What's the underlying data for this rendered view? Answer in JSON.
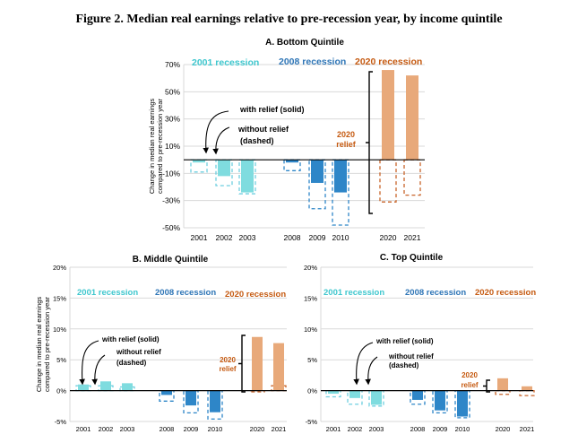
{
  "figure_title": "Figure 2. Median real earnings relative to pre-recession year, by income quintile",
  "colors": {
    "r2001_solid": "#7FDCDF",
    "r2001_dash": "#6FCFE0",
    "r2008": "#2E86C8",
    "r2020": "#E8A97A",
    "r2020_dash": "#C8642A",
    "grid": "#D9D9D9",
    "label2001": "#3FC7CE",
    "label2008": "#2E75B6",
    "label2020": "#C55A11"
  },
  "chart_data": [
    {
      "id": "A",
      "type": "bar",
      "title": "A. Bottom Quintile",
      "ylabel": "Change in median real earnings compared to pre-recession year",
      "ylim": [
        -50,
        70
      ],
      "yticks": [
        -50,
        -30,
        -10,
        10,
        30,
        50,
        70
      ],
      "tick_suffix": "%",
      "categories": [
        "2001",
        "2002",
        "2003",
        "2008",
        "2009",
        "2010",
        "2020",
        "2021"
      ],
      "series": [
        {
          "name": "with relief (solid)",
          "values": [
            -2,
            -12,
            -24,
            -2,
            -17,
            -24,
            66,
            62
          ]
        },
        {
          "name": "without relief (dashed)",
          "values": [
            -9,
            -19,
            -25,
            -8,
            -36,
            -48,
            -31,
            -26
          ]
        }
      ],
      "recession_labels": [
        "2001 recession",
        "2008 recession",
        "2020 recession"
      ],
      "annotations": {
        "with_relief": "with relief (solid)",
        "without_relief_1": "without relief",
        "without_relief_2": "(dashed)",
        "relief_1": "2020",
        "relief_2": "relief"
      }
    },
    {
      "id": "B",
      "type": "bar",
      "title": "B. Middle Quintile",
      "ylabel": "Change in median real earnings compared to pre-recession year",
      "ylim": [
        -5,
        20
      ],
      "yticks": [
        -5,
        0,
        5,
        10,
        15,
        20
      ],
      "tick_suffix": "%",
      "categories": [
        "2001",
        "2002",
        "2003",
        "2008",
        "2009",
        "2010",
        "2020",
        "2021"
      ],
      "series": [
        {
          "name": "with relief (solid)",
          "values": [
            1,
            1.5,
            1.2,
            -0.7,
            -2.4,
            -3.5,
            8.7,
            7.7
          ]
        },
        {
          "name": "without relief (dashed)",
          "values": [
            0.8,
            0.8,
            0.6,
            -1.7,
            -3.6,
            -4.6,
            -0.2,
            0.8
          ]
        }
      ],
      "recession_labels": [
        "2001 recession",
        "2008 recession",
        "2020 recession"
      ],
      "annotations": {
        "with_relief": "with relief (solid)",
        "without_relief_1": "without relief",
        "without_relief_2": "(dashed)",
        "relief_1": "2020",
        "relief_2": "relief"
      }
    },
    {
      "id": "C",
      "type": "bar",
      "title": "C. Top Quintile",
      "ylabel": "",
      "ylim": [
        -5,
        20
      ],
      "yticks": [
        -5,
        0,
        5,
        10,
        15,
        20
      ],
      "tick_suffix": "%",
      "categories": [
        "2001",
        "2002",
        "2003",
        "2008",
        "2009",
        "2010",
        "2020",
        "2021"
      ],
      "series": [
        {
          "name": "with relief (solid)",
          "values": [
            -0.5,
            -1.2,
            -2.3,
            -1.5,
            -3.2,
            -4.2,
            2,
            0.7
          ]
        },
        {
          "name": "without relief (dashed)",
          "values": [
            -1,
            -2.2,
            -2.5,
            -2.2,
            -3.6,
            -4.4,
            -0.6,
            -0.8
          ]
        }
      ],
      "recession_labels": [
        "2001 recession",
        "2008 recession",
        "2020 recession"
      ],
      "annotations": {
        "with_relief": "with relief (solid)",
        "without_relief_1": "without relief",
        "without_relief_2": "(dashed)",
        "relief_1": "2020",
        "relief_2": "relief"
      }
    }
  ]
}
